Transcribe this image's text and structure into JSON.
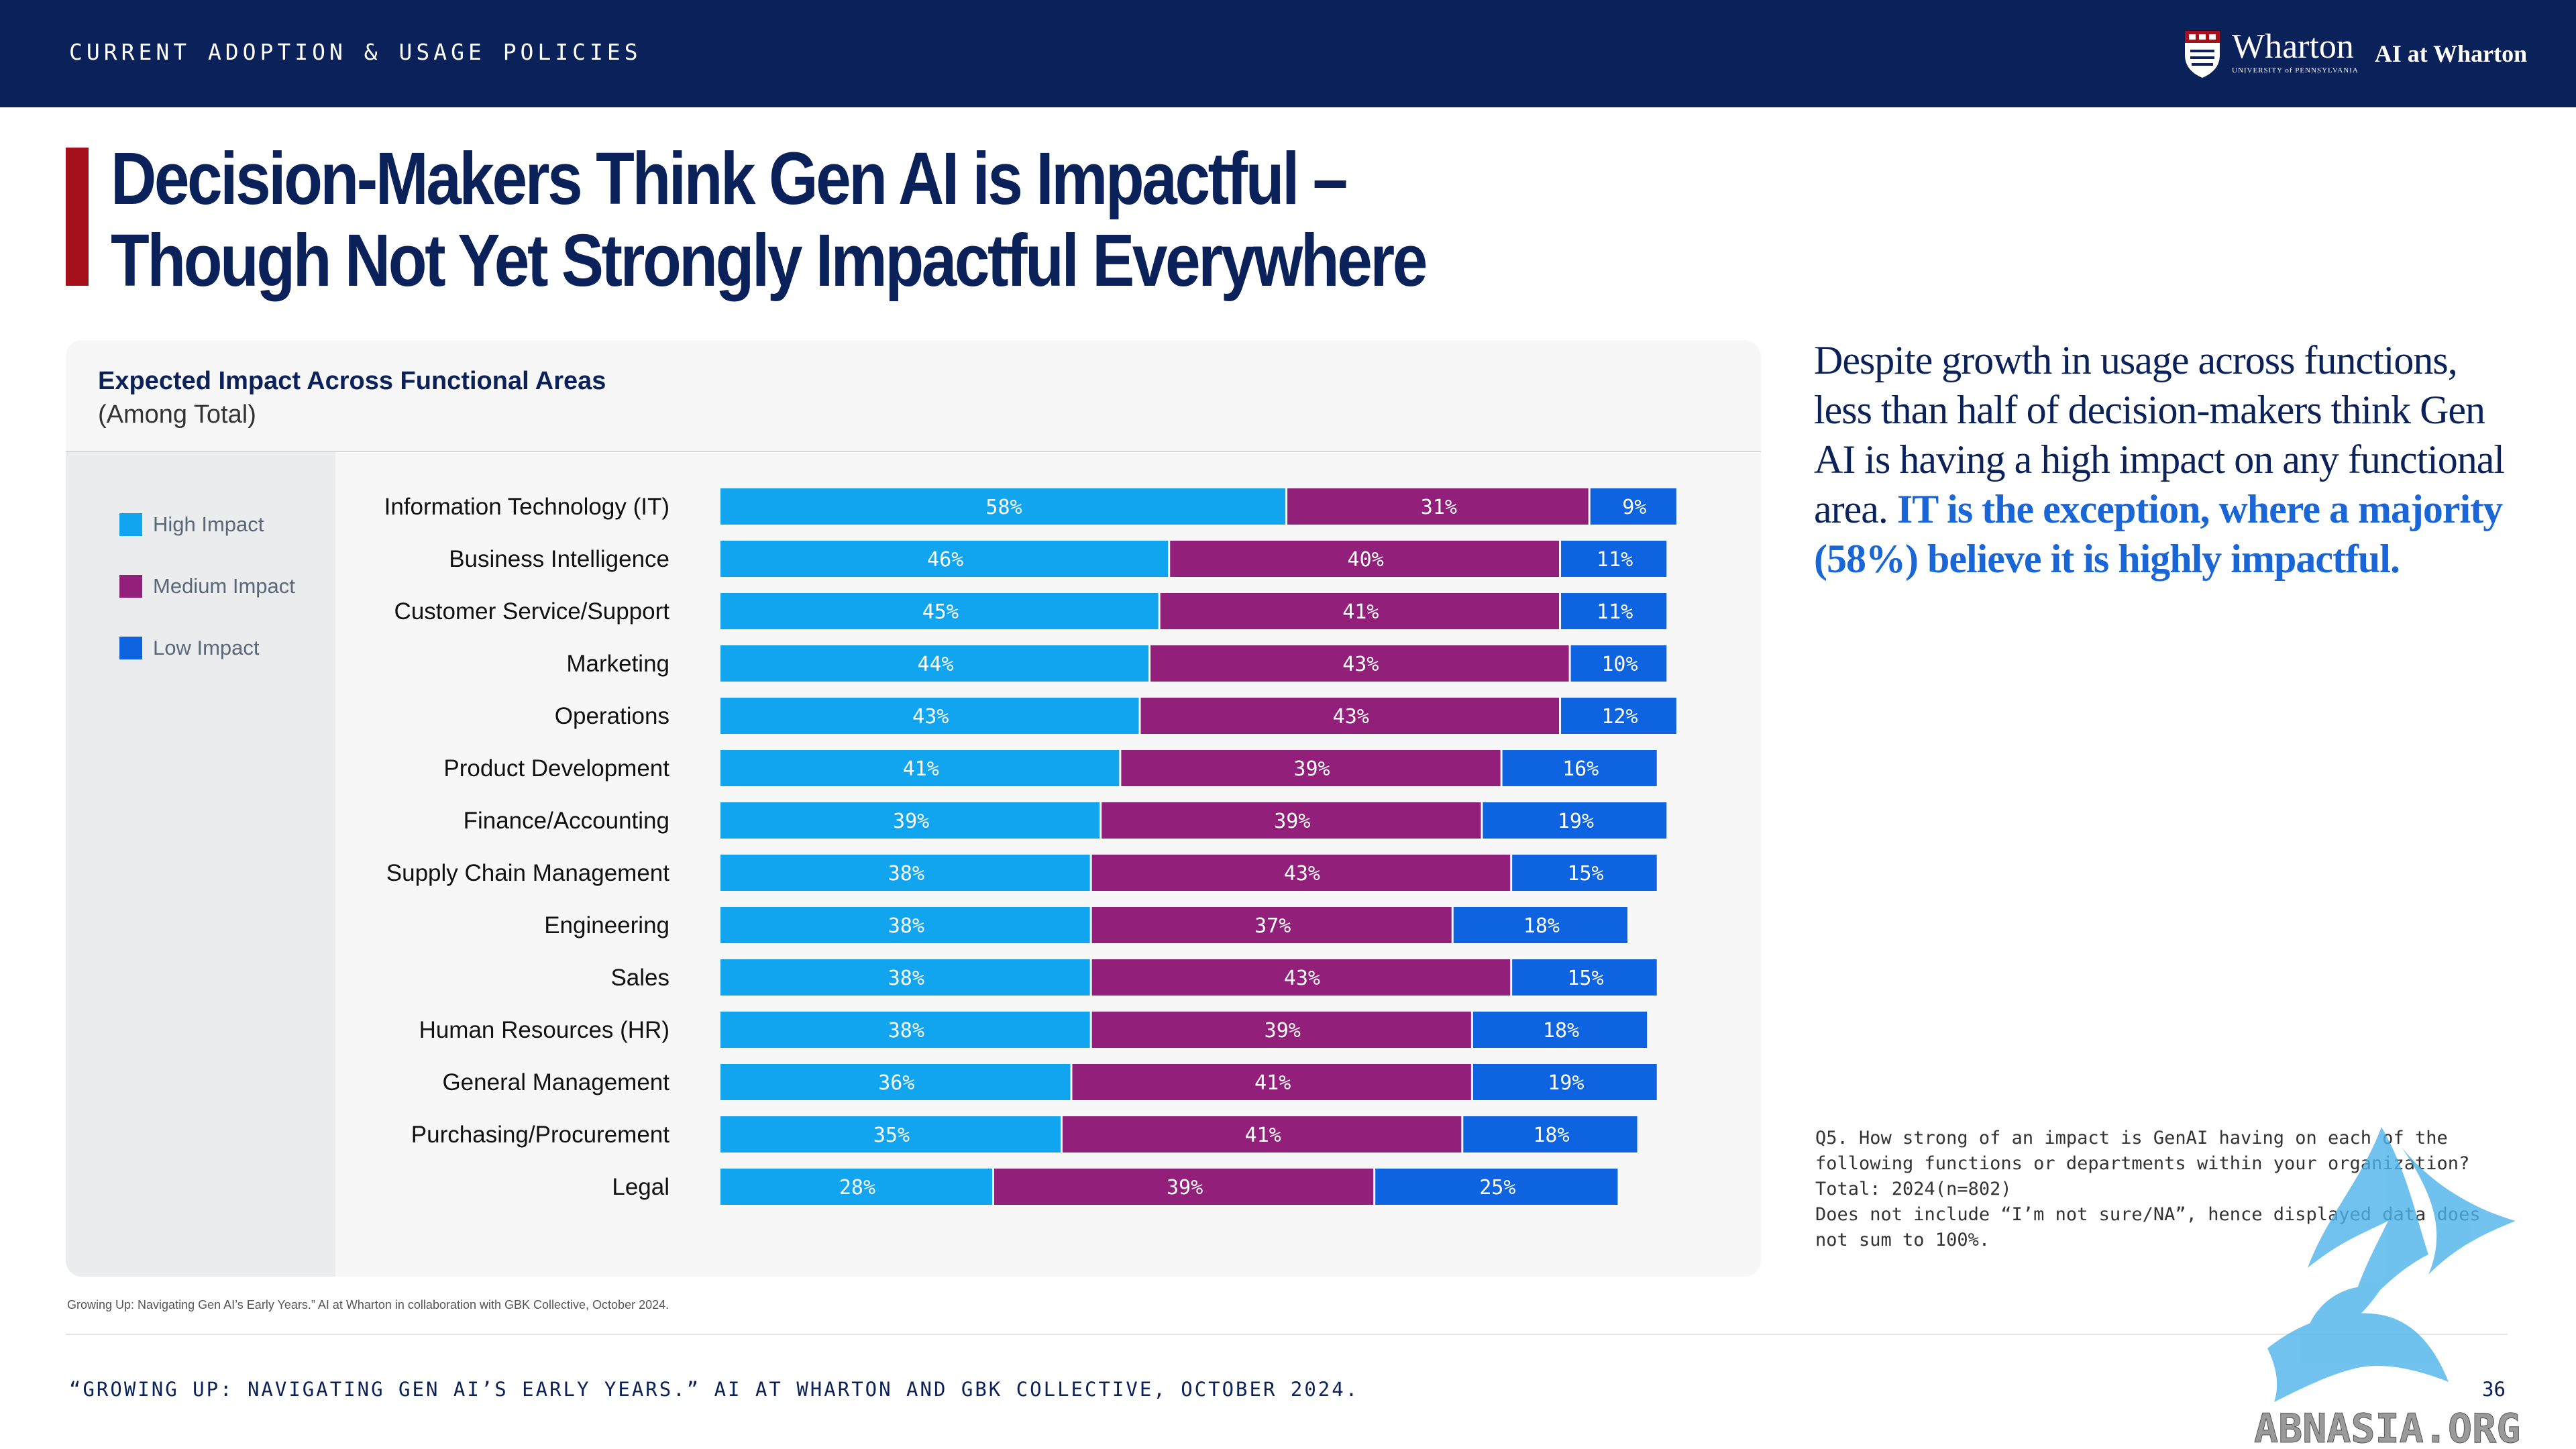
{
  "header": {
    "section_label": "CURRENT ADOPTION & USAGE POLICIES",
    "brand_name": "Wharton",
    "brand_sub": "UNIVERSITY of PENNSYLVANIA",
    "brand_ai": "AI at Wharton"
  },
  "title": "Decision-Makers Think Gen AI is Impactful –\nThough Not Yet Strongly Impactful Everywhere",
  "card": {
    "title": "Expected Impact Across Functional Areas",
    "subtitle": "(Among Total)"
  },
  "chart_data": {
    "type": "bar",
    "orientation": "horizontal",
    "stacked": true,
    "legend_position": "left",
    "categories": [
      "Information Technology (IT)",
      "Business Intelligence",
      "Customer Service/Support",
      "Marketing",
      "Operations",
      "Product Development",
      "Finance/Accounting",
      "Supply Chain Management",
      "Engineering",
      "Sales",
      "Human Resources (HR)",
      "General Management",
      "Purchasing/Procurement",
      "Legal"
    ],
    "series": [
      {
        "name": "High Impact",
        "color": "#11a5f0",
        "values": [
          58,
          46,
          45,
          44,
          43,
          41,
          39,
          38,
          38,
          38,
          38,
          36,
          35,
          28
        ]
      },
      {
        "name": "Medium Impact",
        "color": "#92207a",
        "values": [
          31,
          40,
          41,
          43,
          43,
          39,
          39,
          43,
          37,
          43,
          39,
          41,
          41,
          39
        ]
      },
      {
        "name": "Low Impact",
        "color": "#0d63e0",
        "values": [
          9,
          11,
          11,
          10,
          12,
          16,
          19,
          15,
          18,
          15,
          18,
          19,
          18,
          25
        ]
      }
    ],
    "value_suffix": "%"
  },
  "insight": {
    "lead": "Despite growth in usage across functions, less than half of decision-makers think Gen AI is having a high impact on any functional area. ",
    "highlight": "IT is the exception, where a majority (58%) believe it is highly impactful."
  },
  "note": "Q5. How strong of an impact is GenAI having on each of the following functions or departments within your organization?\nTotal: 2024(n=802)\nDoes not include “I’m not sure/NA”, hence displayed data does not sum to 100%.",
  "source_small": "Growing Up: Navigating Gen AI’s Early Years.” AI at Wharton in collaboration with GBK Collective, October 2024.",
  "footer": "“GROWING UP: NAVIGATING GEN AI’S EARLY YEARS.” AI AT WHARTON AND GBK COLLECTIVE, OCTOBER 2024.",
  "page_number": "36",
  "watermark": "ABNASIA.ORG"
}
